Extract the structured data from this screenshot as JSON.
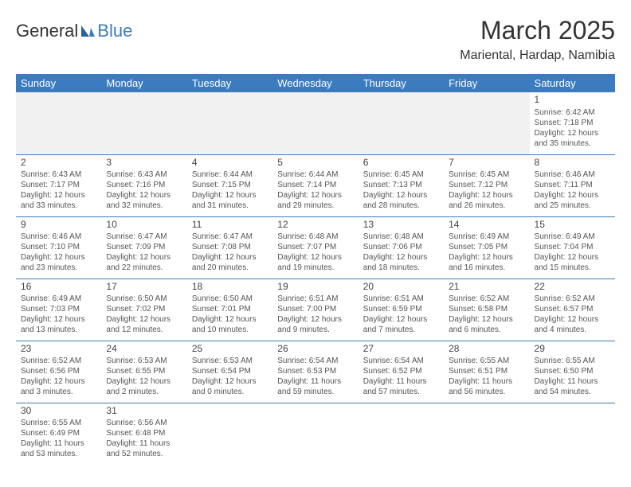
{
  "logo": {
    "part1": "General",
    "part2": "Blue"
  },
  "title": "March 2025",
  "location": "Mariental, Hardap, Namibia",
  "colors": {
    "header_bg": "#3b7bbf",
    "header_text": "#ffffff",
    "body_text": "#555555",
    "border": "#3b7bbf",
    "blank_bg": "#f1f1f1"
  },
  "typography": {
    "title_fontsize": 32,
    "location_fontsize": 16,
    "dayheader_fontsize": 13,
    "cell_fontsize": 10
  },
  "day_headers": [
    "Sunday",
    "Monday",
    "Tuesday",
    "Wednesday",
    "Thursday",
    "Friday",
    "Saturday"
  ],
  "weeks": [
    [
      null,
      null,
      null,
      null,
      null,
      null,
      {
        "n": "1",
        "sr": "Sunrise: 6:42 AM",
        "ss": "Sunset: 7:18 PM",
        "dl": "Daylight: 12 hours and 35 minutes."
      }
    ],
    [
      {
        "n": "2",
        "sr": "Sunrise: 6:43 AM",
        "ss": "Sunset: 7:17 PM",
        "dl": "Daylight: 12 hours and 33 minutes."
      },
      {
        "n": "3",
        "sr": "Sunrise: 6:43 AM",
        "ss": "Sunset: 7:16 PM",
        "dl": "Daylight: 12 hours and 32 minutes."
      },
      {
        "n": "4",
        "sr": "Sunrise: 6:44 AM",
        "ss": "Sunset: 7:15 PM",
        "dl": "Daylight: 12 hours and 31 minutes."
      },
      {
        "n": "5",
        "sr": "Sunrise: 6:44 AM",
        "ss": "Sunset: 7:14 PM",
        "dl": "Daylight: 12 hours and 29 minutes."
      },
      {
        "n": "6",
        "sr": "Sunrise: 6:45 AM",
        "ss": "Sunset: 7:13 PM",
        "dl": "Daylight: 12 hours and 28 minutes."
      },
      {
        "n": "7",
        "sr": "Sunrise: 6:45 AM",
        "ss": "Sunset: 7:12 PM",
        "dl": "Daylight: 12 hours and 26 minutes."
      },
      {
        "n": "8",
        "sr": "Sunrise: 6:46 AM",
        "ss": "Sunset: 7:11 PM",
        "dl": "Daylight: 12 hours and 25 minutes."
      }
    ],
    [
      {
        "n": "9",
        "sr": "Sunrise: 6:46 AM",
        "ss": "Sunset: 7:10 PM",
        "dl": "Daylight: 12 hours and 23 minutes."
      },
      {
        "n": "10",
        "sr": "Sunrise: 6:47 AM",
        "ss": "Sunset: 7:09 PM",
        "dl": "Daylight: 12 hours and 22 minutes."
      },
      {
        "n": "11",
        "sr": "Sunrise: 6:47 AM",
        "ss": "Sunset: 7:08 PM",
        "dl": "Daylight: 12 hours and 20 minutes."
      },
      {
        "n": "12",
        "sr": "Sunrise: 6:48 AM",
        "ss": "Sunset: 7:07 PM",
        "dl": "Daylight: 12 hours and 19 minutes."
      },
      {
        "n": "13",
        "sr": "Sunrise: 6:48 AM",
        "ss": "Sunset: 7:06 PM",
        "dl": "Daylight: 12 hours and 18 minutes."
      },
      {
        "n": "14",
        "sr": "Sunrise: 6:49 AM",
        "ss": "Sunset: 7:05 PM",
        "dl": "Daylight: 12 hours and 16 minutes."
      },
      {
        "n": "15",
        "sr": "Sunrise: 6:49 AM",
        "ss": "Sunset: 7:04 PM",
        "dl": "Daylight: 12 hours and 15 minutes."
      }
    ],
    [
      {
        "n": "16",
        "sr": "Sunrise: 6:49 AM",
        "ss": "Sunset: 7:03 PM",
        "dl": "Daylight: 12 hours and 13 minutes."
      },
      {
        "n": "17",
        "sr": "Sunrise: 6:50 AM",
        "ss": "Sunset: 7:02 PM",
        "dl": "Daylight: 12 hours and 12 minutes."
      },
      {
        "n": "18",
        "sr": "Sunrise: 6:50 AM",
        "ss": "Sunset: 7:01 PM",
        "dl": "Daylight: 12 hours and 10 minutes."
      },
      {
        "n": "19",
        "sr": "Sunrise: 6:51 AM",
        "ss": "Sunset: 7:00 PM",
        "dl": "Daylight: 12 hours and 9 minutes."
      },
      {
        "n": "20",
        "sr": "Sunrise: 6:51 AM",
        "ss": "Sunset: 6:59 PM",
        "dl": "Daylight: 12 hours and 7 minutes."
      },
      {
        "n": "21",
        "sr": "Sunrise: 6:52 AM",
        "ss": "Sunset: 6:58 PM",
        "dl": "Daylight: 12 hours and 6 minutes."
      },
      {
        "n": "22",
        "sr": "Sunrise: 6:52 AM",
        "ss": "Sunset: 6:57 PM",
        "dl": "Daylight: 12 hours and 4 minutes."
      }
    ],
    [
      {
        "n": "23",
        "sr": "Sunrise: 6:52 AM",
        "ss": "Sunset: 6:56 PM",
        "dl": "Daylight: 12 hours and 3 minutes."
      },
      {
        "n": "24",
        "sr": "Sunrise: 6:53 AM",
        "ss": "Sunset: 6:55 PM",
        "dl": "Daylight: 12 hours and 2 minutes."
      },
      {
        "n": "25",
        "sr": "Sunrise: 6:53 AM",
        "ss": "Sunset: 6:54 PM",
        "dl": "Daylight: 12 hours and 0 minutes."
      },
      {
        "n": "26",
        "sr": "Sunrise: 6:54 AM",
        "ss": "Sunset: 6:53 PM",
        "dl": "Daylight: 11 hours and 59 minutes."
      },
      {
        "n": "27",
        "sr": "Sunrise: 6:54 AM",
        "ss": "Sunset: 6:52 PM",
        "dl": "Daylight: 11 hours and 57 minutes."
      },
      {
        "n": "28",
        "sr": "Sunrise: 6:55 AM",
        "ss": "Sunset: 6:51 PM",
        "dl": "Daylight: 11 hours and 56 minutes."
      },
      {
        "n": "29",
        "sr": "Sunrise: 6:55 AM",
        "ss": "Sunset: 6:50 PM",
        "dl": "Daylight: 11 hours and 54 minutes."
      }
    ],
    [
      {
        "n": "30",
        "sr": "Sunrise: 6:55 AM",
        "ss": "Sunset: 6:49 PM",
        "dl": "Daylight: 11 hours and 53 minutes."
      },
      {
        "n": "31",
        "sr": "Sunrise: 6:56 AM",
        "ss": "Sunset: 6:48 PM",
        "dl": "Daylight: 11 hours and 52 minutes."
      },
      null,
      null,
      null,
      null,
      null
    ]
  ]
}
